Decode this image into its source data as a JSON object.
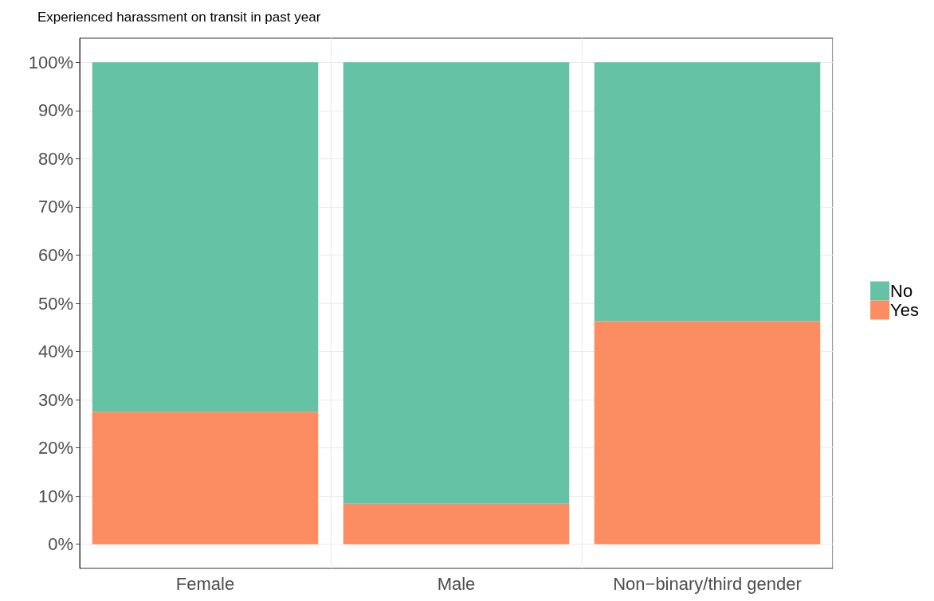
{
  "chart_data": {
    "type": "bar",
    "title": "Experienced harassment on transit in past year",
    "categories": [
      "Female",
      "Male",
      "Non−binary/third gender"
    ],
    "series": [
      {
        "name": "Yes",
        "color": "#fc8d62",
        "values": [
          27.5,
          8.4,
          46.3
        ]
      },
      {
        "name": "No",
        "color": "#66c2a5",
        "values": [
          72.5,
          91.6,
          53.7
        ]
      }
    ],
    "stacked": true,
    "ylim": [
      -5,
      105
    ],
    "yticks": [
      {
        "value": 0,
        "label": "0%"
      },
      {
        "value": 10,
        "label": "10%"
      },
      {
        "value": 20,
        "label": "20%"
      },
      {
        "value": 30,
        "label": "30%"
      },
      {
        "value": 40,
        "label": "40%"
      },
      {
        "value": 50,
        "label": "50%"
      },
      {
        "value": 60,
        "label": "60%"
      },
      {
        "value": 70,
        "label": "70%"
      },
      {
        "value": 80,
        "label": "80%"
      },
      {
        "value": 90,
        "label": "90%"
      },
      {
        "value": 100,
        "label": "100%"
      }
    ],
    "grid": true,
    "legend": "right"
  }
}
